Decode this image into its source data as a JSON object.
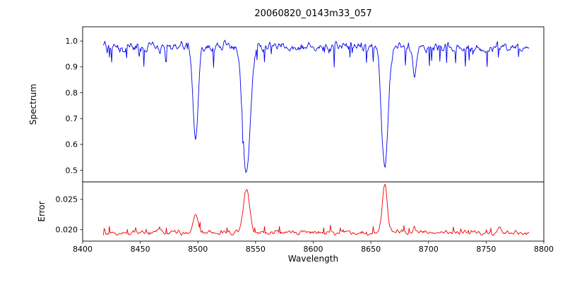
{
  "title": "20060820_0143m33_057",
  "chart_data": {
    "type": "line",
    "title": "20060820_0143m33_057",
    "xlabel": "Wavelength",
    "grid": false,
    "legend": "none",
    "xlim": [
      8400,
      8800
    ],
    "xticks": [
      {
        "v": 8400,
        "label": "8400"
      },
      {
        "v": 8450,
        "label": "8450"
      },
      {
        "v": 8500,
        "label": "8500"
      },
      {
        "v": 8550,
        "label": "8550"
      },
      {
        "v": 8600,
        "label": "8600"
      },
      {
        "v": 8650,
        "label": "8650"
      },
      {
        "v": 8700,
        "label": "8700"
      },
      {
        "v": 8750,
        "label": "8750"
      },
      {
        "v": 8800,
        "label": "8800"
      }
    ],
    "panels": [
      {
        "name": "spectrum",
        "ylabel": "Spectrum",
        "ylim": [
          0.455,
          1.055
        ],
        "yticks": [
          {
            "v": 1.0,
            "label": "1.0"
          },
          {
            "v": 0.9,
            "label": "0.9"
          },
          {
            "v": 0.8,
            "label": "0.8"
          },
          {
            "v": 0.7,
            "label": "0.7"
          },
          {
            "v": 0.6,
            "label": "0.6"
          },
          {
            "v": 0.5,
            "label": "0.5"
          }
        ],
        "line_color": "#0000ee",
        "x_start": 8418,
        "x_end": 8787,
        "continuum": 0.978,
        "noise_amplitude": 0.028,
        "absorption_lines": [
          {
            "center": 8498.0,
            "depth": 0.36,
            "width": 2.2
          },
          {
            "center": 8542.1,
            "depth": 0.5,
            "width": 3.2
          },
          {
            "center": 8662.1,
            "depth": 0.47,
            "width": 2.8
          },
          {
            "center": 8688.0,
            "depth": 0.11,
            "width": 1.8
          }
        ]
      },
      {
        "name": "error",
        "ylabel": "Error",
        "ylim": [
          0.0181,
          0.0279
        ],
        "yticks": [
          {
            "v": 0.025,
            "label": "0.025"
          },
          {
            "v": 0.02,
            "label": "0.020"
          }
        ],
        "line_color": "#ee0000",
        "x_start": 8418,
        "x_end": 8787,
        "baseline": 0.0195,
        "noise_amplitude": 0.0006,
        "peaks": [
          {
            "center": 8467.0,
            "height": 0.0008,
            "width": 1.5
          },
          {
            "center": 8498.0,
            "height": 0.0033,
            "width": 2.0
          },
          {
            "center": 8542.1,
            "height": 0.0072,
            "width": 2.6
          },
          {
            "center": 8662.1,
            "height": 0.0078,
            "width": 2.2
          },
          {
            "center": 8688.0,
            "height": 0.0008,
            "width": 1.8
          },
          {
            "center": 8762.0,
            "height": 0.0008,
            "width": 1.6
          }
        ]
      }
    ]
  }
}
